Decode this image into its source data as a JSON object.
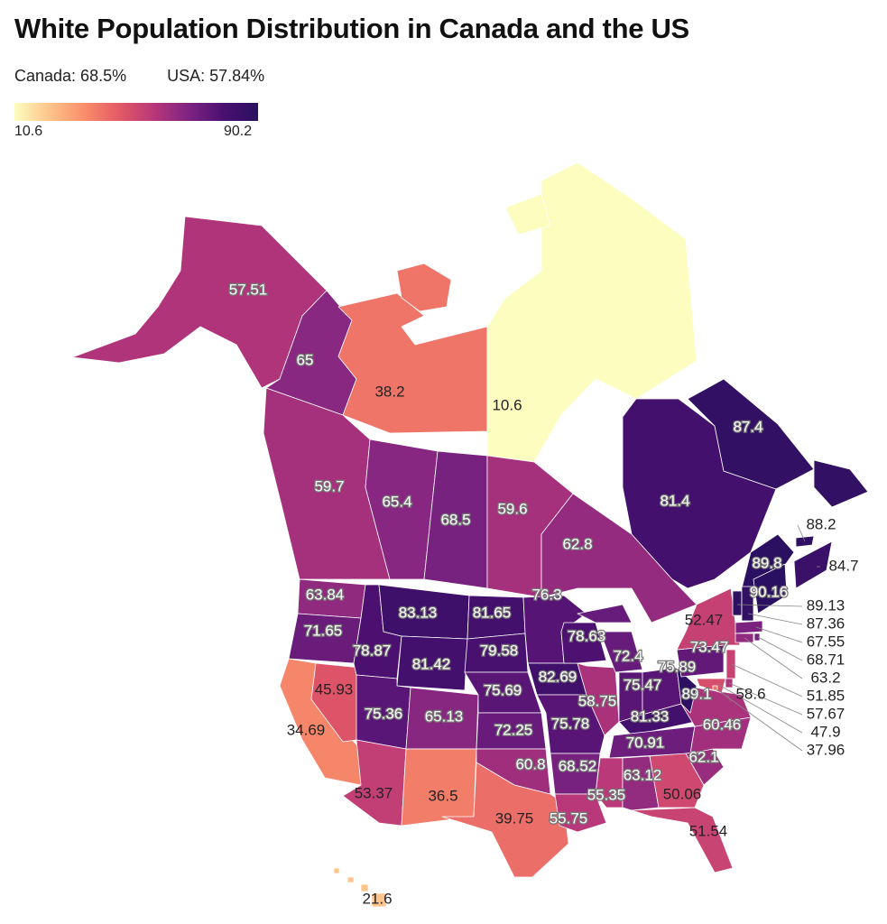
{
  "title": "White Population Distribution in Canada and the US",
  "summary": {
    "canada": "Canada: 68.5%",
    "usa": "USA: 57.84%"
  },
  "legend": {
    "min": "10.6",
    "max": "90.2",
    "colors": [
      "#fcfdbf",
      "#fdc48a",
      "#f98e6a",
      "#e45a66",
      "#b83779",
      "#7e2482",
      "#4a1070",
      "#2a1060"
    ]
  },
  "regions": [
    {
      "name": "Alaska",
      "value": "57.51"
    },
    {
      "name": "Yukon",
      "value": "65"
    },
    {
      "name": "Northwest Territories",
      "value": "38.2"
    },
    {
      "name": "Nunavut",
      "value": "10.6"
    },
    {
      "name": "British Columbia",
      "value": "59.7"
    },
    {
      "name": "Alberta",
      "value": "65.4"
    },
    {
      "name": "Saskatchewan",
      "value": "68.5"
    },
    {
      "name": "Manitoba",
      "value": "59.6"
    },
    {
      "name": "Ontario",
      "value": "62.8"
    },
    {
      "name": "Quebec",
      "value": "81.4"
    },
    {
      "name": "Newfoundland and Labrador",
      "value": "87.4"
    },
    {
      "name": "New Brunswick",
      "value": "89.8"
    },
    {
      "name": "Prince Edward Island",
      "value": "88.2"
    },
    {
      "name": "Nova Scotia",
      "value": "84.7"
    },
    {
      "name": "Washington",
      "value": "63.84"
    },
    {
      "name": "Oregon",
      "value": "71.65"
    },
    {
      "name": "California",
      "value": "34.69"
    },
    {
      "name": "Nevada",
      "value": "45.93"
    },
    {
      "name": "Idaho",
      "value": "78.87"
    },
    {
      "name": "Montana",
      "value": "83.13"
    },
    {
      "name": "Wyoming",
      "value": "81.42"
    },
    {
      "name": "Utah",
      "value": "75.36"
    },
    {
      "name": "Arizona",
      "value": "53.37"
    },
    {
      "name": "Colorado",
      "value": "65.13"
    },
    {
      "name": "New Mexico",
      "value": "36.5"
    },
    {
      "name": "North Dakota",
      "value": "81.65"
    },
    {
      "name": "South Dakota",
      "value": "79.58"
    },
    {
      "name": "Nebraska",
      "value": "75.69"
    },
    {
      "name": "Kansas",
      "value": "72.25"
    },
    {
      "name": "Oklahoma",
      "value": "60.8"
    },
    {
      "name": "Texas",
      "value": "39.75"
    },
    {
      "name": "Minnesota",
      "value": "76.3"
    },
    {
      "name": "Iowa",
      "value": "82.69"
    },
    {
      "name": "Missouri",
      "value": "75.78"
    },
    {
      "name": "Arkansas",
      "value": "68.52"
    },
    {
      "name": "Louisiana",
      "value": "55.75"
    },
    {
      "name": "Wisconsin",
      "value": "78.63"
    },
    {
      "name": "Illinois",
      "value": "58.75"
    },
    {
      "name": "Michigan",
      "value": "72.4"
    },
    {
      "name": "Indiana",
      "value": "75.47"
    },
    {
      "name": "Ohio",
      "value": "75.89"
    },
    {
      "name": "Kentucky",
      "value": "81.33"
    },
    {
      "name": "Tennessee",
      "value": "70.91"
    },
    {
      "name": "Mississippi",
      "value": "55.35"
    },
    {
      "name": "Alabama",
      "value": "63.12"
    },
    {
      "name": "Georgia",
      "value": "50.06"
    },
    {
      "name": "Florida",
      "value": "51.54"
    },
    {
      "name": "South Carolina",
      "value": "62.1"
    },
    {
      "name": "North Carolina",
      "value": "60.46"
    },
    {
      "name": "Virginia",
      "value": "58.6"
    },
    {
      "name": "West Virginia",
      "value": "89.1"
    },
    {
      "name": "Pennsylvania",
      "value": "73.47"
    },
    {
      "name": "New York",
      "value": "52.47"
    },
    {
      "name": "Vermont",
      "value": "89.13"
    },
    {
      "name": "New Hampshire",
      "value": "87.36"
    },
    {
      "name": "Maine",
      "value": "90.16"
    },
    {
      "name": "Massachusetts",
      "value": "67.55"
    },
    {
      "name": "Rhode Island",
      "value": "68.71"
    },
    {
      "name": "Connecticut",
      "value": "63.2"
    },
    {
      "name": "New Jersey",
      "value": "51.85"
    },
    {
      "name": "Delaware",
      "value": "57.67"
    },
    {
      "name": "Maryland",
      "value": "47.9"
    },
    {
      "name": "District of Columbia",
      "value": "37.96"
    },
    {
      "name": "Hawaii",
      "value": "21.6"
    }
  ]
}
